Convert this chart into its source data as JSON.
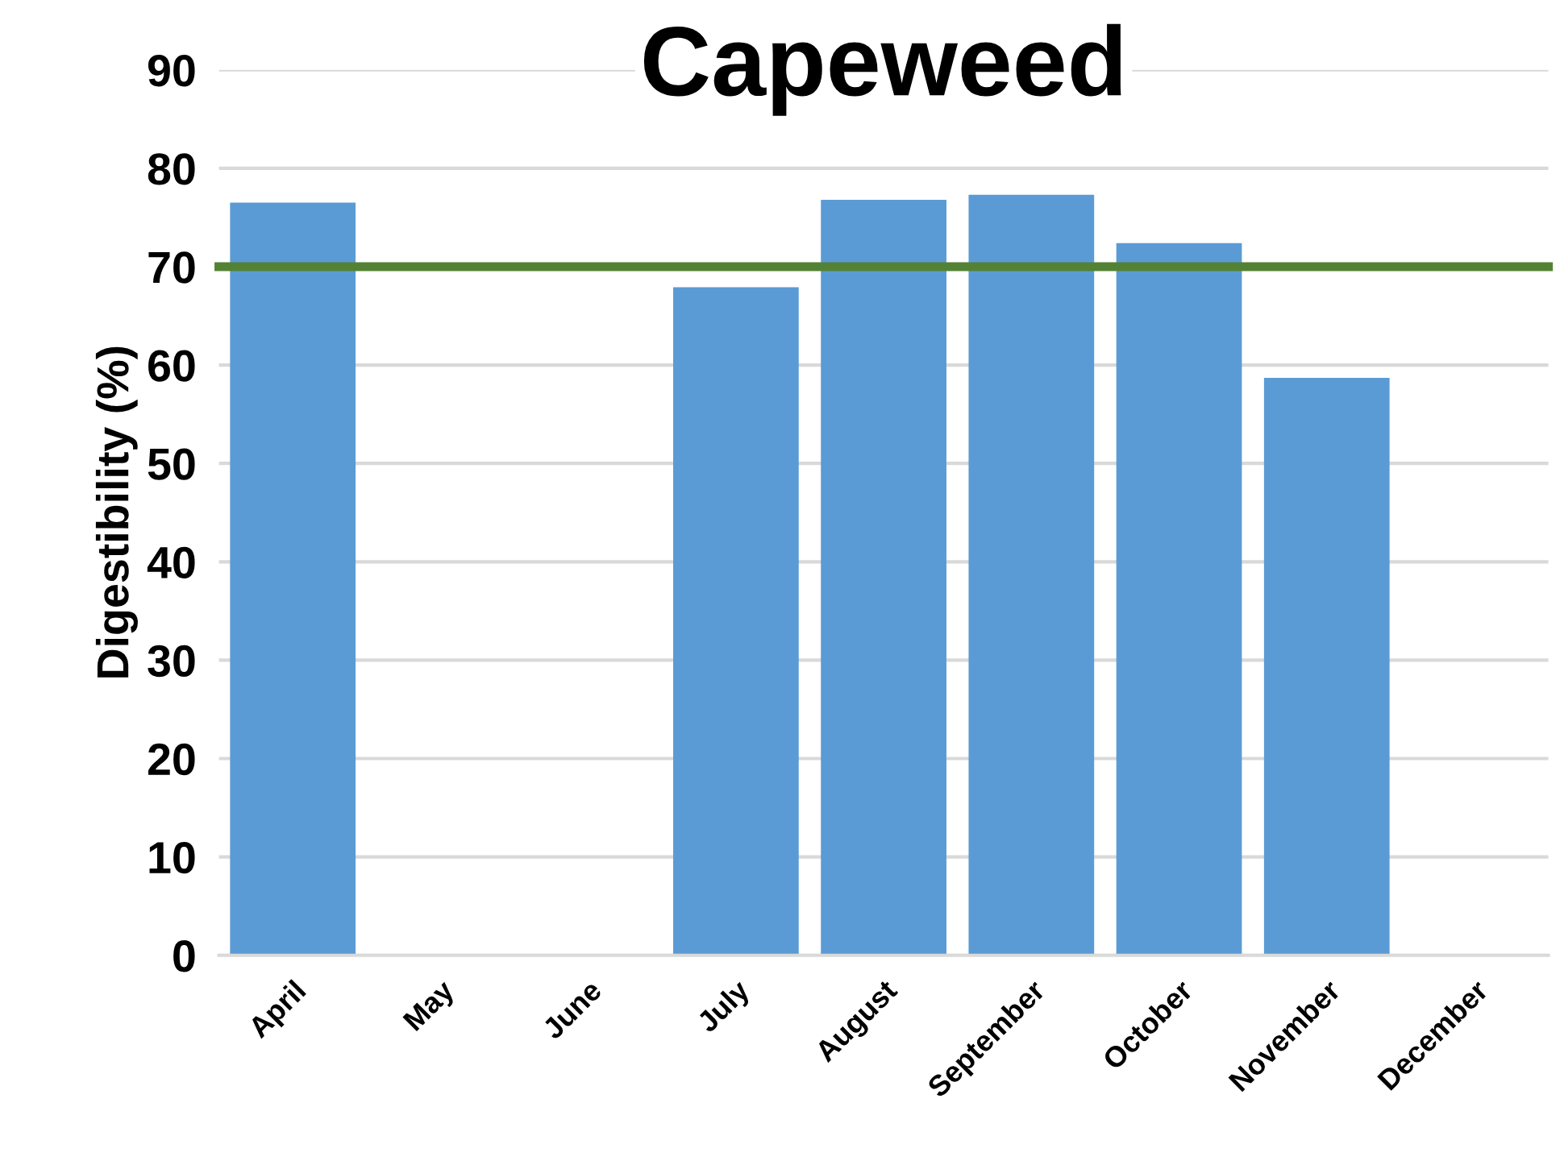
{
  "chart_data": {
    "type": "bar",
    "title": "Capeweed",
    "ylabel": "Digestibility (%)",
    "categories": [
      "April",
      "May",
      "June",
      "July",
      "August",
      "September",
      "October",
      "November",
      "December"
    ],
    "series": [
      {
        "color": "#5b9bd5",
        "values": [
          76.5,
          null,
          null,
          67.9,
          76.8,
          77.3,
          72.4,
          58.7,
          null
        ]
      }
    ],
    "ylim": [
      0,
      90
    ],
    "yticks": [
      0,
      10,
      20,
      30,
      40,
      50,
      60,
      70,
      80,
      90
    ],
    "grid": "y",
    "ref_lines": [
      {
        "axis": "y",
        "value": 70,
        "color": "#548235"
      }
    ]
  }
}
